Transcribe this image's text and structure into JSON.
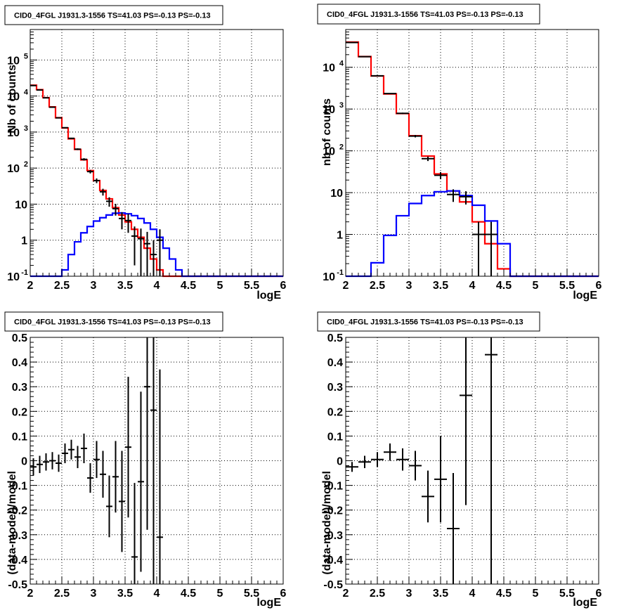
{
  "chart_data": [
    {
      "type": "histogram",
      "title": "CID0_4FGL J1931.3-1556 TS=41.03 PS=-0.13 PS=-0.13",
      "xlabel": "logE",
      "ylabel": "Nb of counts",
      "xlim": [
        2,
        6
      ],
      "ylim": [
        0.1,
        700000
      ],
      "log_y": true,
      "grid": true,
      "x_ticks": [
        "2",
        "2.5",
        "3",
        "3.5",
        "4",
        "4.5",
        "5",
        "5.5",
        "6"
      ],
      "y_ticks": [
        {
          "v": 0.1,
          "mant": "10",
          "exp": "-1"
        },
        {
          "v": 1,
          "mant": "1",
          "exp": ""
        },
        {
          "v": 10,
          "mant": "10",
          "exp": ""
        },
        {
          "v": 100,
          "mant": "10",
          "exp": "2"
        },
        {
          "v": 1000,
          "mant": "10",
          "exp": "3"
        },
        {
          "v": 10000,
          "mant": "10",
          "exp": "4"
        },
        {
          "v": 100000,
          "mant": "10",
          "exp": "5"
        }
      ],
      "bin_edges": [
        2.0,
        2.1,
        2.2,
        2.3,
        2.4,
        2.5,
        2.6,
        2.7,
        2.8,
        2.9,
        3.0,
        3.1,
        3.2,
        3.3,
        3.4,
        3.5,
        3.6,
        3.7,
        3.8,
        3.9,
        4.0,
        4.1,
        4.2,
        4.3,
        4.4,
        4.5,
        4.6,
        4.7,
        4.8,
        4.9,
        5.0,
        5.1,
        5.2,
        5.3,
        5.4,
        5.5,
        5.6,
        5.7,
        5.8,
        5.9,
        6.0
      ],
      "series": [
        {
          "color": "#ff0000",
          "kind": "step",
          "values": [
            20000,
            15000,
            9000,
            5000,
            2500,
            1300,
            650,
            330,
            170,
            85,
            45,
            24,
            14,
            8,
            5,
            3.2,
            2,
            1.2,
            0.6,
            0.3,
            0.15,
            0.1,
            0.1,
            0.1,
            0.1,
            0.1,
            0.1,
            0.1,
            0.1,
            0.1,
            0.1,
            0.1,
            0.1,
            0.1,
            0.1,
            0.1,
            0.1,
            0.1,
            0.1,
            0.1
          ]
        },
        {
          "color": "#0000ff",
          "kind": "step",
          "values": [
            0.1,
            0.1,
            0.1,
            0.1,
            0.1,
            0.15,
            0.4,
            0.9,
            1.6,
            2.4,
            3.4,
            4.2,
            5,
            5.6,
            5.7,
            5.4,
            4.8,
            4,
            3,
            2,
            1.2,
            0.6,
            0.3,
            0.15,
            0.1,
            0.1,
            0.1,
            0.1,
            0.1,
            0.1,
            0.1,
            0.1,
            0.1,
            0.1,
            0.1,
            0.1,
            0.1,
            0.1,
            0.1,
            0.1
          ]
        },
        {
          "color": "#000000",
          "kind": "points",
          "points": [
            {
              "x": 2.05,
              "y": 19500,
              "lo": 19360,
              "hi": 19640
            },
            {
              "x": 2.15,
              "y": 14700,
              "lo": 14580,
              "hi": 14820
            },
            {
              "x": 2.25,
              "y": 8900,
              "lo": 8805,
              "hi": 8995
            },
            {
              "x": 2.35,
              "y": 4900,
              "lo": 4830,
              "hi": 4970
            },
            {
              "x": 2.45,
              "y": 2480,
              "lo": 2430,
              "hi": 2530
            },
            {
              "x": 2.55,
              "y": 1320,
              "lo": 1284,
              "hi": 1356
            },
            {
              "x": 2.65,
              "y": 670,
              "lo": 644,
              "hi": 696
            },
            {
              "x": 2.75,
              "y": 335,
              "lo": 317,
              "hi": 353
            },
            {
              "x": 2.85,
              "y": 175,
              "lo": 162,
              "hi": 188
            },
            {
              "x": 2.95,
              "y": 80,
              "lo": 71,
              "hi": 89
            },
            {
              "x": 3.05,
              "y": 45,
              "lo": 38.3,
              "hi": 51.7
            },
            {
              "x": 3.15,
              "y": 22,
              "lo": 17.3,
              "hi": 26.7
            },
            {
              "x": 3.25,
              "y": 12,
              "lo": 8.5,
              "hi": 15.5
            },
            {
              "x": 3.35,
              "y": 7.5,
              "lo": 4.8,
              "hi": 10.2
            },
            {
              "x": 3.45,
              "y": 4,
              "lo": 2,
              "hi": 6
            },
            {
              "x": 3.55,
              "y": 3.5,
              "lo": 1.6,
              "hi": 5.4
            },
            {
              "x": 3.65,
              "y": 1.3,
              "lo": 0.2,
              "hi": 2.4
            },
            {
              "x": 3.75,
              "y": 1.1,
              "lo": 0.1,
              "hi": 2.1
            },
            {
              "x": 3.85,
              "y": 0.8,
              "lo": 0.1,
              "hi": 1.7
            },
            {
              "x": 3.95,
              "y": 0.4,
              "lo": 0.1,
              "hi": 1.0
            },
            {
              "x": 4.05,
              "y": 1,
              "lo": 0.1,
              "hi": 2
            }
          ]
        }
      ]
    },
    {
      "type": "histogram",
      "title": "CID0_4FGL J1931.3-1556 TS=41.03 PS=-0.13 PS=-0.13",
      "xlabel": "logE",
      "ylabel": "nb of counts",
      "xlim": [
        2,
        6
      ],
      "ylim": [
        0.1,
        80000
      ],
      "log_y": true,
      "grid": true,
      "x_ticks": [
        "2",
        "2.5",
        "3",
        "3.5",
        "4",
        "4.5",
        "5",
        "5.5",
        "6"
      ],
      "y_ticks": [
        {
          "v": 0.1,
          "mant": "10",
          "exp": "-1"
        },
        {
          "v": 1,
          "mant": "1",
          "exp": ""
        },
        {
          "v": 10,
          "mant": "10",
          "exp": ""
        },
        {
          "v": 100,
          "mant": "10",
          "exp": "2"
        },
        {
          "v": 1000,
          "mant": "10",
          "exp": "3"
        },
        {
          "v": 10000,
          "mant": "10",
          "exp": "4"
        }
      ],
      "bin_edges": [
        2.0,
        2.2,
        2.4,
        2.6,
        2.8,
        3.0,
        3.2,
        3.4,
        3.6,
        3.8,
        4.0,
        4.2,
        4.4,
        4.6,
        4.8,
        5.0,
        5.2,
        5.4,
        5.6,
        5.8,
        6.0
      ],
      "series": [
        {
          "color": "#ff0000",
          "kind": "step",
          "values": [
            40000,
            18000,
            6200,
            2300,
            780,
            230,
            75,
            28,
            11,
            6,
            2,
            0.6,
            0.15,
            0.1,
            0.1,
            0.1,
            0.1,
            0.1,
            0.1,
            0.1
          ]
        },
        {
          "color": "#0000ff",
          "kind": "step",
          "values": [
            0.1,
            0.1,
            0.21,
            0.95,
            2.8,
            5.5,
            8.5,
            10.5,
            11,
            8.5,
            5,
            2.1,
            0.6,
            0.1,
            0.1,
            0.1,
            0.1,
            0.1,
            0.1,
            0.1
          ]
        },
        {
          "color": "#000000",
          "kind": "points",
          "points": [
            {
              "x": 2.1,
              "y": 39000,
              "lo": 38800,
              "hi": 39200
            },
            {
              "x": 2.3,
              "y": 17900,
              "lo": 17760,
              "hi": 18040
            },
            {
              "x": 2.5,
              "y": 6250,
              "lo": 6170,
              "hi": 6330
            },
            {
              "x": 2.7,
              "y": 2350,
              "lo": 2300,
              "hi": 2400
            },
            {
              "x": 2.9,
              "y": 790,
              "lo": 762,
              "hi": 818
            },
            {
              "x": 3.1,
              "y": 225,
              "lo": 210,
              "hi": 240
            },
            {
              "x": 3.3,
              "y": 65,
              "lo": 57,
              "hi": 73
            },
            {
              "x": 3.5,
              "y": 26,
              "lo": 21,
              "hi": 31
            },
            {
              "x": 3.7,
              "y": 9,
              "lo": 6,
              "hi": 12
            },
            {
              "x": 3.9,
              "y": 8,
              "lo": 5.2,
              "hi": 10.8
            },
            {
              "x": 4.1,
              "y": 1,
              "lo": 0.1,
              "hi": 2
            },
            {
              "x": 4.3,
              "y": 1,
              "lo": 0.1,
              "hi": 2
            }
          ]
        }
      ]
    },
    {
      "type": "scatter",
      "title": "CID0_4FGL J1931.3-1556 TS=41.03 PS=-0.13 PS=-0.13",
      "xlabel": "logE",
      "ylabel": "(data-model)/model",
      "xlim": [
        2,
        6
      ],
      "ylim": [
        -0.5,
        0.5
      ],
      "log_y": false,
      "grid": true,
      "x_ticks": [
        "2",
        "2.5",
        "3",
        "3.5",
        "4",
        "4.5",
        "5",
        "5.5",
        "6"
      ],
      "y_ticks": [
        {
          "v": -0.5,
          "mant": "-0.5",
          "exp": ""
        },
        {
          "v": -0.4,
          "mant": "-0.4",
          "exp": ""
        },
        {
          "v": -0.3,
          "mant": "-0.3",
          "exp": ""
        },
        {
          "v": -0.2,
          "mant": "-0.2",
          "exp": ""
        },
        {
          "v": -0.1,
          "mant": "-0.1",
          "exp": ""
        },
        {
          "v": 0,
          "mant": "0",
          "exp": ""
        },
        {
          "v": 0.1,
          "mant": "0.1",
          "exp": ""
        },
        {
          "v": 0.2,
          "mant": "0.2",
          "exp": ""
        },
        {
          "v": 0.3,
          "mant": "0.3",
          "exp": ""
        },
        {
          "v": 0.4,
          "mant": "0.4",
          "exp": ""
        },
        {
          "v": 0.5,
          "mant": "0.5",
          "exp": ""
        }
      ],
      "half_width": 0.05,
      "series": [
        {
          "color": "#000000",
          "kind": "points",
          "points": [
            {
              "x": 2.05,
              "y": -0.025,
              "lo": -0.06,
              "hi": 0.01
            },
            {
              "x": 2.15,
              "y": -0.015,
              "lo": -0.05,
              "hi": 0.02
            },
            {
              "x": 2.25,
              "y": -0.005,
              "lo": -0.04,
              "hi": 0.03
            },
            {
              "x": 2.35,
              "y": 0.0,
              "lo": -0.035,
              "hi": 0.035
            },
            {
              "x": 2.45,
              "y": -0.01,
              "lo": -0.045,
              "hi": 0.025
            },
            {
              "x": 2.55,
              "y": 0.03,
              "lo": -0.01,
              "hi": 0.07
            },
            {
              "x": 2.65,
              "y": 0.045,
              "lo": 0.005,
              "hi": 0.085
            },
            {
              "x": 2.75,
              "y": 0.015,
              "lo": -0.03,
              "hi": 0.06
            },
            {
              "x": 2.85,
              "y": 0.05,
              "lo": -0.01,
              "hi": 0.11
            },
            {
              "x": 2.95,
              "y": -0.07,
              "lo": -0.13,
              "hi": -0.01
            },
            {
              "x": 3.05,
              "y": 0.005,
              "lo": -0.07,
              "hi": 0.08
            },
            {
              "x": 3.15,
              "y": -0.055,
              "lo": -0.15,
              "hi": 0.04
            },
            {
              "x": 3.25,
              "y": -0.185,
              "lo": -0.31,
              "hi": -0.06
            },
            {
              "x": 3.35,
              "y": -0.065,
              "lo": -0.21,
              "hi": 0.08
            },
            {
              "x": 3.45,
              "y": -0.165,
              "lo": -0.37,
              "hi": 0.04
            },
            {
              "x": 3.55,
              "y": 0.055,
              "lo": -0.23,
              "hi": 0.34
            },
            {
              "x": 3.65,
              "y": -0.39,
              "lo": -0.5,
              "hi": -0.09
            },
            {
              "x": 3.75,
              "y": -0.085,
              "lo": -0.45,
              "hi": 0.28
            },
            {
              "x": 3.85,
              "y": 0.3,
              "lo": -0.28,
              "hi": 0.5
            },
            {
              "x": 3.95,
              "y": 0.205,
              "lo": -0.5,
              "hi": 0.5
            },
            {
              "x": 4.05,
              "y": -0.31,
              "lo": -0.5,
              "hi": 0.37
            }
          ]
        }
      ]
    },
    {
      "type": "scatter",
      "title": "CID0_4FGL J1931.3-1556 TS=41.03 PS=-0.13 PS=-0.13",
      "xlabel": "logE",
      "ylabel": "(data-model)/model",
      "xlim": [
        2,
        6
      ],
      "ylim": [
        -0.5,
        0.5
      ],
      "log_y": false,
      "grid": true,
      "x_ticks": [
        "2",
        "2.5",
        "3",
        "3.5",
        "4",
        "4.5",
        "5",
        "5.5",
        "6"
      ],
      "y_ticks": [
        {
          "v": -0.5,
          "mant": "-0.5",
          "exp": ""
        },
        {
          "v": -0.4,
          "mant": "-0.4",
          "exp": ""
        },
        {
          "v": -0.3,
          "mant": "-0.3",
          "exp": ""
        },
        {
          "v": -0.2,
          "mant": "-0.2",
          "exp": ""
        },
        {
          "v": -0.1,
          "mant": "-0.1",
          "exp": ""
        },
        {
          "v": 0,
          "mant": "0",
          "exp": ""
        },
        {
          "v": 0.1,
          "mant": "0.1",
          "exp": ""
        },
        {
          "v": 0.2,
          "mant": "0.2",
          "exp": ""
        },
        {
          "v": 0.3,
          "mant": "0.3",
          "exp": ""
        },
        {
          "v": 0.4,
          "mant": "0.4",
          "exp": ""
        },
        {
          "v": 0.5,
          "mant": "0.5",
          "exp": ""
        }
      ],
      "half_width": 0.1,
      "series": [
        {
          "color": "#000000",
          "kind": "points",
          "points": [
            {
              "x": 2.1,
              "y": -0.025,
              "lo": -0.045,
              "hi": -0.005
            },
            {
              "x": 2.3,
              "y": -0.005,
              "lo": -0.03,
              "hi": 0.02
            },
            {
              "x": 2.5,
              "y": 0.005,
              "lo": -0.025,
              "hi": 0.035
            },
            {
              "x": 2.7,
              "y": 0.035,
              "lo": 0.0,
              "hi": 0.07
            },
            {
              "x": 2.9,
              "y": 0.005,
              "lo": -0.04,
              "hi": 0.05
            },
            {
              "x": 3.1,
              "y": -0.02,
              "lo": -0.08,
              "hi": 0.04
            },
            {
              "x": 3.3,
              "y": -0.145,
              "lo": -0.25,
              "hi": -0.04
            },
            {
              "x": 3.5,
              "y": -0.075,
              "lo": -0.25,
              "hi": 0.1
            },
            {
              "x": 3.7,
              "y": -0.275,
              "lo": -0.5,
              "hi": -0.05
            },
            {
              "x": 3.9,
              "y": 0.265,
              "lo": -0.18,
              "hi": 0.5
            },
            {
              "x": 4.3,
              "y": 0.43,
              "lo": -0.5,
              "hi": 0.5
            }
          ]
        }
      ]
    }
  ]
}
